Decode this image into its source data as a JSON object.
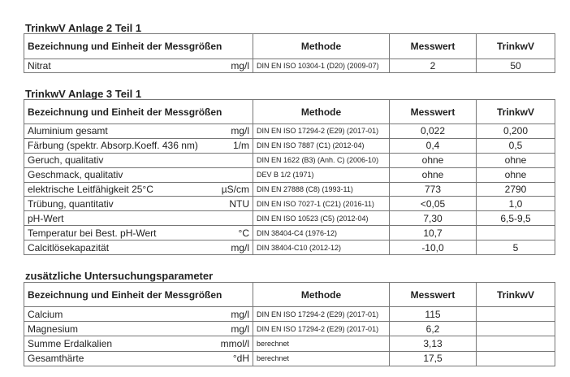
{
  "headers": {
    "name": "Bezeichnung und Einheit der Messgrößen",
    "method": "Methode",
    "value": "Messwert",
    "limit": "TrinkwV"
  },
  "sections": [
    {
      "title": "TrinkwV Anlage 2 Teil 1",
      "rows": [
        {
          "name": "Nitrat",
          "unit": "mg/l",
          "method": "DIN EN ISO 10304-1 (D20)  (2009-07)",
          "value": "2",
          "limit": "50"
        }
      ]
    },
    {
      "title": "TrinkwV Anlage 3 Teil 1",
      "rows": [
        {
          "name": "Aluminium gesamt",
          "unit": "mg/l",
          "method": "DIN EN ISO 17294-2 (E29)  (2017-01)",
          "value": "0,022",
          "limit": "0,200"
        },
        {
          "name": "Färbung (spektr. Absorp.Koeff. 436 nm)",
          "unit": "1/m",
          "method": "DIN EN ISO 7887 (C1)  (2012-04)",
          "value": "0,4",
          "limit": "0,5"
        },
        {
          "name": "Geruch, qualitativ",
          "unit": "",
          "method": "DIN EN 1622 (B3) (Anh. C)  (2006-10)",
          "value": "ohne",
          "limit": "ohne"
        },
        {
          "name": "Geschmack, qualitativ",
          "unit": "",
          "method": "DEV B 1/2  (1971)",
          "value": "ohne",
          "limit": "ohne"
        },
        {
          "name": "elektrische Leitfähigkeit 25°C",
          "unit": "µS/cm",
          "method": "DIN EN 27888 (C8)  (1993-11)",
          "value": "773",
          "limit": "2790"
        },
        {
          "name": "Trübung, quantitativ",
          "unit": "NTU",
          "method": "DIN EN ISO 7027-1 (C21)  (2016-11)",
          "value": "<0,05",
          "limit": "1,0"
        },
        {
          "name": "pH-Wert",
          "unit": "",
          "method": "DIN EN ISO 10523 (C5)  (2012-04)",
          "value": "7,30",
          "limit": "6,5-9,5"
        },
        {
          "name": "Temperatur bei Best. pH-Wert",
          "unit": "°C",
          "method": "DIN 38404-C4  (1976-12)",
          "value": "10,7",
          "limit": ""
        },
        {
          "name": "Calcitlösekapazität",
          "unit": "mg/l",
          "method": "DIN 38404-C10  (2012-12)",
          "value": "-10,0",
          "limit": "5"
        }
      ]
    },
    {
      "title": "zusätzliche Untersuchungsparameter",
      "rows": [
        {
          "name": "Calcium",
          "unit": "mg/l",
          "method": "DIN EN ISO 17294-2 (E29)  (2017-01)",
          "value": "115",
          "limit": ""
        },
        {
          "name": "Magnesium",
          "unit": "mg/l",
          "method": "DIN EN ISO 17294-2 (E29)  (2017-01)",
          "value": "6,2",
          "limit": ""
        },
        {
          "name": "Summe Erdalkalien",
          "unit": "mmol/l",
          "method": "berechnet",
          "value": "3,13",
          "limit": ""
        },
        {
          "name": "Gesamthärte",
          "unit": "°dH",
          "method": "berechnet",
          "value": "17,5",
          "limit": ""
        }
      ]
    }
  ]
}
